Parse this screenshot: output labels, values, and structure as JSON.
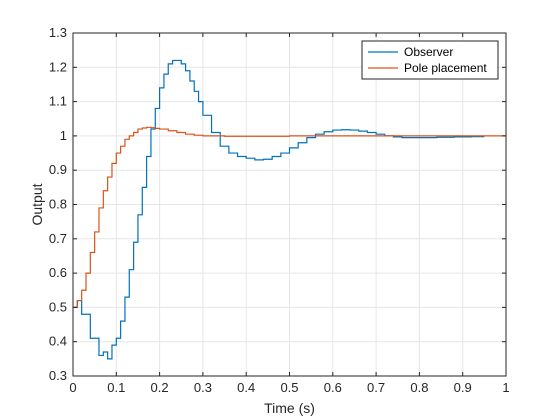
{
  "chart_data": {
    "type": "line",
    "step": true,
    "xlabel": "Time (s)",
    "ylabel": "Output",
    "xlim": [
      0,
      1
    ],
    "ylim": [
      0.3,
      1.3
    ],
    "xticks": [
      0,
      0.1,
      0.2,
      0.3,
      0.4,
      0.5,
      0.6,
      0.7,
      0.8,
      0.9,
      1
    ],
    "yticks": [
      0.3,
      0.4,
      0.5,
      0.6,
      0.7,
      0.8,
      0.9,
      1,
      1.1,
      1.2,
      1.3
    ],
    "grid": true,
    "legend_position": "top-right",
    "colors": {
      "observer": "#0072BD",
      "pole": "#D95319",
      "grid": "#e6e6e6",
      "axis": "#262626"
    },
    "series": [
      {
        "name": "Observer",
        "x": [
          0,
          0.01,
          0.02,
          0.03,
          0.04,
          0.05,
          0.06,
          0.07,
          0.08,
          0.09,
          0.1,
          0.11,
          0.12,
          0.13,
          0.14,
          0.15,
          0.16,
          0.17,
          0.18,
          0.19,
          0.2,
          0.21,
          0.22,
          0.23,
          0.24,
          0.25,
          0.26,
          0.27,
          0.28,
          0.29,
          0.3,
          0.32,
          0.34,
          0.36,
          0.38,
          0.4,
          0.42,
          0.44,
          0.46,
          0.48,
          0.5,
          0.52,
          0.54,
          0.56,
          0.58,
          0.6,
          0.62,
          0.64,
          0.66,
          0.68,
          0.7,
          0.72,
          0.74,
          0.76,
          0.78,
          0.8,
          0.84,
          0.88,
          0.92,
          0.95
        ],
        "y": [
          0.5,
          0.52,
          0.48,
          0.48,
          0.41,
          0.41,
          0.36,
          0.37,
          0.35,
          0.39,
          0.41,
          0.46,
          0.53,
          0.61,
          0.69,
          0.77,
          0.85,
          0.94,
          1.02,
          1.08,
          1.14,
          1.18,
          1.21,
          1.22,
          1.22,
          1.21,
          1.19,
          1.16,
          1.13,
          1.1,
          1.06,
          1.01,
          0.97,
          0.95,
          0.94,
          0.935,
          0.93,
          0.932,
          0.94,
          0.95,
          0.965,
          0.98,
          0.995,
          1.005,
          1.012,
          1.017,
          1.018,
          1.017,
          1.014,
          1.01,
          1.005,
          1.0,
          0.997,
          0.995,
          0.995,
          0.995,
          0.996,
          0.997,
          0.998,
          0.998
        ]
      },
      {
        "name": "Pole placement",
        "x": [
          0,
          0.01,
          0.02,
          0.03,
          0.04,
          0.05,
          0.06,
          0.07,
          0.08,
          0.09,
          0.1,
          0.11,
          0.12,
          0.13,
          0.14,
          0.15,
          0.16,
          0.17,
          0.18,
          0.19,
          0.2,
          0.22,
          0.24,
          0.26,
          0.28,
          0.3,
          0.35,
          0.4,
          0.5,
          0.6,
          0.7,
          0.8,
          0.9,
          1.0
        ],
        "y": [
          0.5,
          0.52,
          0.55,
          0.6,
          0.66,
          0.72,
          0.79,
          0.84,
          0.88,
          0.92,
          0.95,
          0.97,
          0.99,
          1.0,
          1.01,
          1.02,
          1.023,
          1.025,
          1.024,
          1.022,
          1.02,
          1.015,
          1.01,
          1.005,
          1.002,
          1.0,
          0.999,
          0.999,
          1.0,
          1.0,
          1.0,
          1.0,
          1.0,
          1.0
        ]
      }
    ]
  }
}
